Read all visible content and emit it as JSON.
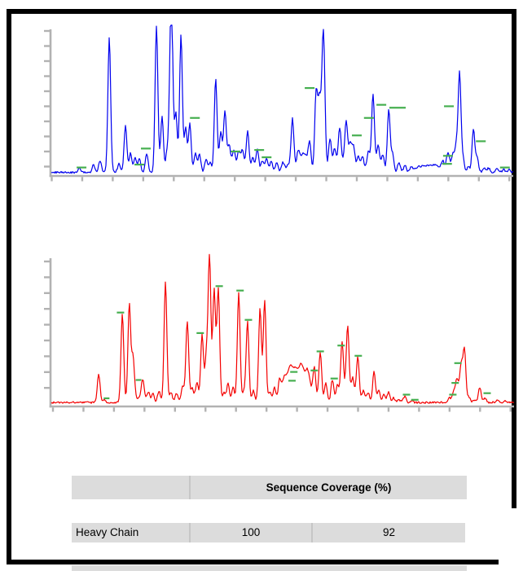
{
  "figure": {
    "background_color": "#ffffff",
    "frame_color": "#000000",
    "axis_color": "#b2b2b2",
    "annotation_color": "#46af50"
  },
  "chart_data": [
    {
      "type": "line",
      "name": "top mass spectrum / chromatogram trace",
      "color": "#0000ee",
      "axis_color": "#b2b2b2",
      "annotation_color": "#46af50",
      "title": "",
      "xlabel": "",
      "ylabel": "",
      "tick_labels_visible": false,
      "x_range": [
        0,
        1
      ],
      "y_range": [
        0,
        1
      ],
      "peaks": [
        [
          0.062,
          0.03
        ],
        [
          0.093,
          0.05
        ],
        [
          0.107,
          0.08
        ],
        [
          0.127,
          0.92
        ],
        [
          0.148,
          0.06
        ],
        [
          0.162,
          0.32
        ],
        [
          0.173,
          0.13
        ],
        [
          0.183,
          0.1
        ],
        [
          0.192,
          0.09
        ],
        [
          0.208,
          0.13
        ],
        [
          0.229,
          1.0
        ],
        [
          0.241,
          0.38
        ],
        [
          0.252,
          0.14
        ],
        [
          0.259,
          0.5
        ],
        [
          0.262,
          0.86
        ],
        [
          0.271,
          0.4
        ],
        [
          0.282,
          0.94
        ],
        [
          0.292,
          0.3
        ],
        [
          0.301,
          0.33
        ],
        [
          0.313,
          0.13
        ],
        [
          0.322,
          0.12
        ],
        [
          0.336,
          0.09
        ],
        [
          0.345,
          0.07
        ],
        [
          0.357,
          0.64
        ],
        [
          0.368,
          0.26
        ],
        [
          0.377,
          0.4
        ],
        [
          0.386,
          0.15
        ],
        [
          0.396,
          0.11
        ],
        [
          0.4,
          0.05,
          10
        ],
        [
          0.407,
          0.1
        ],
        [
          0.415,
          0.12
        ],
        [
          0.426,
          0.27
        ],
        [
          0.437,
          0.1
        ],
        [
          0.447,
          0.16
        ],
        [
          0.458,
          0.08
        ],
        [
          0.467,
          0.09
        ],
        [
          0.477,
          0.08
        ],
        [
          0.489,
          0.07
        ],
        [
          0.502,
          0.06
        ],
        [
          0.515,
          0.05,
          4
        ],
        [
          0.523,
          0.34
        ],
        [
          0.535,
          0.1
        ],
        [
          0.547,
          0.13,
          5
        ],
        [
          0.56,
          0.17
        ],
        [
          0.574,
          0.55
        ],
        [
          0.581,
          0.48
        ],
        [
          0.588,
          0.52
        ],
        [
          0.591,
          0.58
        ],
        [
          0.604,
          0.21
        ],
        [
          0.614,
          0.12
        ],
        [
          0.625,
          0.24
        ],
        [
          0.63,
          0.07,
          10
        ],
        [
          0.639,
          0.3
        ],
        [
          0.648,
          0.16
        ],
        [
          0.655,
          0.15
        ],
        [
          0.665,
          0.1
        ],
        [
          0.674,
          0.1
        ],
        [
          0.687,
          0.12
        ],
        [
          0.697,
          0.5
        ],
        [
          0.7,
          0.04,
          9
        ],
        [
          0.708,
          0.15
        ],
        [
          0.718,
          0.1
        ],
        [
          0.731,
          0.42
        ],
        [
          0.739,
          0.13
        ],
        [
          0.753,
          0.07
        ],
        [
          0.766,
          0.05
        ],
        [
          0.78,
          0.04
        ],
        [
          0.794,
          0.03,
          4
        ],
        [
          0.806,
          0.03,
          4
        ],
        [
          0.82,
          0.04,
          4
        ],
        [
          0.833,
          0.04,
          4
        ],
        [
          0.847,
          0.06
        ],
        [
          0.859,
          0.09
        ],
        [
          0.86,
          0.05,
          5
        ],
        [
          0.87,
          0.1
        ],
        [
          0.877,
          0.17
        ],
        [
          0.884,
          0.68
        ],
        [
          0.891,
          0.1
        ],
        [
          0.903,
          0.04
        ],
        [
          0.914,
          0.3
        ],
        [
          0.922,
          0.1
        ],
        [
          0.937,
          0.03
        ],
        [
          0.947,
          0.03
        ],
        [
          0.965,
          0.03
        ],
        [
          0.979,
          0.02
        ],
        [
          0.991,
          0.02
        ]
      ],
      "annotations": [
        [
          0.067,
          0.03
        ],
        [
          0.192,
          0.05
        ],
        [
          0.206,
          0.16
        ],
        [
          0.312,
          0.37
        ],
        [
          0.4,
          0.14
        ],
        [
          0.451,
          0.15
        ],
        [
          0.467,
          0.1
        ],
        [
          0.56,
          0.575
        ],
        [
          0.662,
          0.25
        ],
        [
          0.688,
          0.37
        ],
        [
          0.715,
          0.46
        ],
        [
          0.75,
          0.44,
          20
        ],
        [
          0.861,
          0.45
        ],
        [
          0.859,
          0.11
        ],
        [
          0.857,
          0.055
        ],
        [
          0.93,
          0.21
        ],
        [
          0.982,
          0.03
        ]
      ]
    },
    {
      "type": "line",
      "name": "bottom mass spectrum / chromatogram trace",
      "color": "#f40000",
      "axis_color": "#b2b2b2",
      "annotation_color": "#46af50",
      "title": "",
      "xlabel": "",
      "ylabel": "",
      "tick_labels_visible": false,
      "x_range": [
        0,
        1
      ],
      "y_range": [
        0,
        1
      ],
      "peaks": [
        [
          0.104,
          0.19
        ],
        [
          0.116,
          0.02
        ],
        [
          0.155,
          0.6
        ],
        [
          0.17,
          0.66
        ],
        [
          0.178,
          0.3
        ],
        [
          0.19,
          0.03,
          6
        ],
        [
          0.199,
          0.14
        ],
        [
          0.211,
          0.07
        ],
        [
          0.221,
          0.06
        ],
        [
          0.234,
          0.08
        ],
        [
          0.248,
          0.82
        ],
        [
          0.26,
          0.07
        ],
        [
          0.272,
          0.06
        ],
        [
          0.285,
          0.1
        ],
        [
          0.295,
          0.53
        ],
        [
          0.3,
          0.03,
          6
        ],
        [
          0.306,
          0.07
        ],
        [
          0.316,
          0.13
        ],
        [
          0.327,
          0.46
        ],
        [
          0.336,
          0.3
        ],
        [
          0.343,
          1.0
        ],
        [
          0.353,
          0.77
        ],
        [
          0.362,
          0.78
        ],
        [
          0.374,
          0.07
        ],
        [
          0.383,
          0.13
        ],
        [
          0.394,
          0.1
        ],
        [
          0.406,
          0.75
        ],
        [
          0.417,
          0.07
        ],
        [
          0.425,
          0.55
        ],
        [
          0.438,
          0.08
        ],
        [
          0.452,
          0.64
        ],
        [
          0.462,
          0.69
        ],
        [
          0.473,
          0.07
        ],
        [
          0.483,
          0.1
        ],
        [
          0.494,
          0.13
        ],
        [
          0.504,
          0.14,
          3
        ],
        [
          0.517,
          0.18,
          3
        ],
        [
          0.52,
          0.06,
          8
        ],
        [
          0.529,
          0.16,
          3
        ],
        [
          0.541,
          0.21,
          3
        ],
        [
          0.554,
          0.17,
          3
        ],
        [
          0.56,
          0.05,
          8
        ],
        [
          0.569,
          0.2
        ],
        [
          0.582,
          0.33
        ],
        [
          0.594,
          0.13
        ],
        [
          0.608,
          0.15
        ],
        [
          0.619,
          0.1
        ],
        [
          0.629,
          0.37
        ],
        [
          0.64,
          0.06,
          8
        ],
        [
          0.641,
          0.46
        ],
        [
          0.652,
          0.13
        ],
        [
          0.663,
          0.3
        ],
        [
          0.675,
          0.08
        ],
        [
          0.685,
          0.07
        ],
        [
          0.698,
          0.21
        ],
        [
          0.708,
          0.08
        ],
        [
          0.719,
          0.05
        ],
        [
          0.729,
          0.07
        ],
        [
          0.74,
          0.03
        ],
        [
          0.752,
          0.02
        ],
        [
          0.764,
          0.04
        ],
        [
          0.779,
          0.01
        ],
        [
          0.861,
          0.03
        ],
        [
          0.87,
          0.07
        ],
        [
          0.877,
          0.13
        ],
        [
          0.885,
          0.05,
          5
        ],
        [
          0.886,
          0.21
        ],
        [
          0.893,
          0.33
        ],
        [
          0.903,
          0.03
        ],
        [
          0.916,
          0.02
        ],
        [
          0.926,
          0.1
        ],
        [
          0.937,
          0.03
        ],
        [
          0.963,
          0.015
        ],
        [
          0.981,
          0.012
        ]
      ],
      "annotations": [
        [
          0.121,
          0.025,
          7
        ],
        [
          0.151,
          0.61
        ],
        [
          0.19,
          0.15,
          7
        ],
        [
          0.323,
          0.47
        ],
        [
          0.364,
          0.79
        ],
        [
          0.409,
          0.76
        ],
        [
          0.427,
          0.56
        ],
        [
          0.521,
          0.145
        ],
        [
          0.525,
          0.205
        ],
        [
          0.569,
          0.215
        ],
        [
          0.582,
          0.345
        ],
        [
          0.612,
          0.16
        ],
        [
          0.627,
          0.385
        ],
        [
          0.664,
          0.315
        ],
        [
          0.768,
          0.05
        ],
        [
          0.786,
          0.015
        ],
        [
          0.868,
          0.05
        ],
        [
          0.873,
          0.13
        ],
        [
          0.879,
          0.265
        ],
        [
          0.942,
          0.06
        ]
      ]
    }
  ],
  "table": {
    "header": "Sequence Coverage (%)",
    "rows": [
      {
        "label": "Heavy Chain",
        "values": [
          "100",
          "92"
        ]
      }
    ],
    "partial_row_visible": true,
    "cell_color": "#dcdcdc",
    "text_color": "#000000"
  }
}
